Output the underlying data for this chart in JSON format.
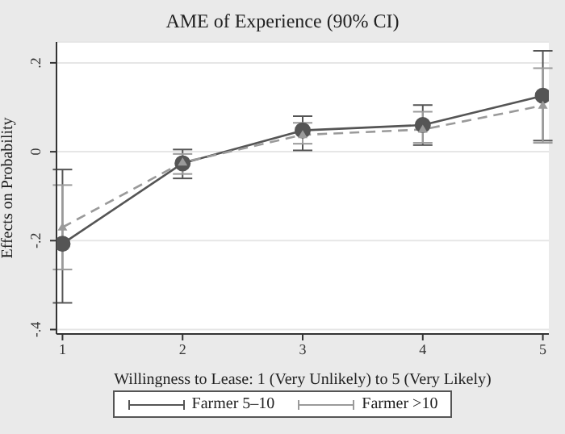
{
  "chart_data": {
    "type": "line",
    "title": "AME of Experience (90% CI)",
    "xlabel": "Willingness to Lease: 1 (Very Unlikely) to 5 (Very Likely)",
    "ylabel": "Effects on Probability",
    "x": [
      1,
      2,
      3,
      4,
      5
    ],
    "series": [
      {
        "name": "Farmer 5–10",
        "color": "#555555",
        "marker": "circle",
        "line_style": "solid",
        "values": [
          -0.207,
          -0.026,
          0.048,
          0.06,
          0.126
        ],
        "errors": [
          [
            -0.34,
            -0.04
          ],
          [
            -0.06,
            0.005
          ],
          [
            0.003,
            0.08
          ],
          [
            0.015,
            0.105
          ],
          [
            0.025,
            0.227
          ]
        ]
      },
      {
        "name": "Farmer >10",
        "color": "#9a9a9a",
        "marker": "triangle",
        "line_style": "dashed",
        "values": [
          -0.17,
          -0.024,
          0.038,
          0.05,
          0.104
        ],
        "errors": [
          [
            -0.265,
            -0.075
          ],
          [
            -0.05,
            -0.005
          ],
          [
            0.018,
            0.065
          ],
          [
            0.02,
            0.09
          ],
          [
            0.02,
            0.188
          ]
        ]
      }
    ],
    "xlim": [
      0.95,
      5.05
    ],
    "xticks": [
      1,
      2,
      3,
      4,
      5
    ],
    "ylim": [
      -0.41,
      0.247
    ],
    "yticks": [
      {
        "value": -0.4,
        "label": "-.4"
      },
      {
        "value": -0.2,
        "label": "-.2"
      },
      {
        "value": 0,
        "label": "0"
      },
      {
        "value": 0.2,
        "label": ".2"
      }
    ],
    "grid": "y",
    "legend": "bottom"
  }
}
